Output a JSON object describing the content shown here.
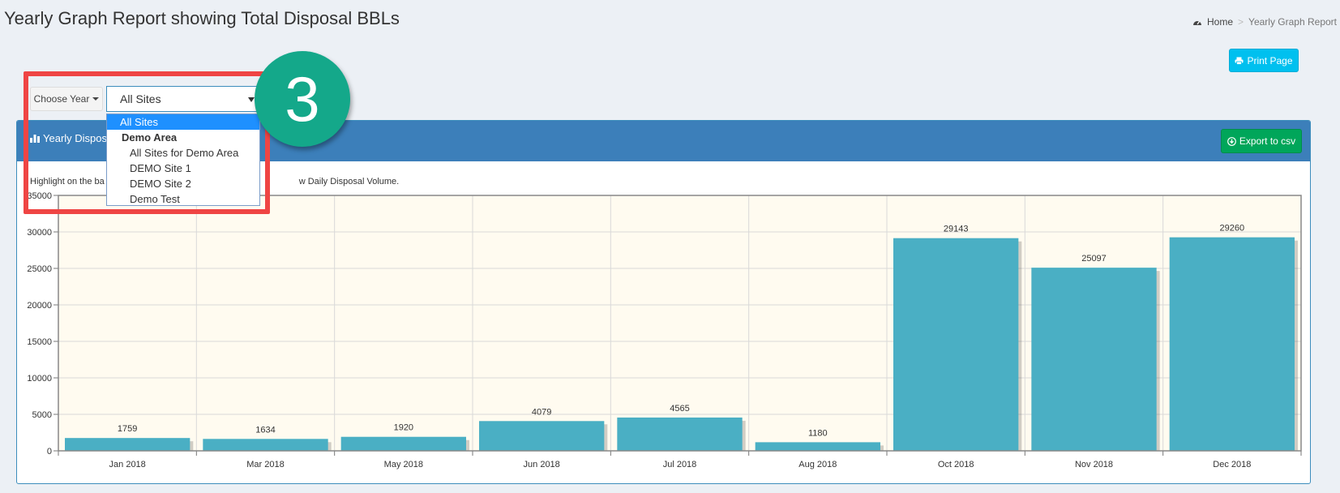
{
  "header": {
    "title": "Yearly Graph Report showing Total Disposal BBLs",
    "breadcrumb": {
      "home": "Home",
      "current": "Yearly Graph Report"
    }
  },
  "toolbar": {
    "print_label": "Print Page",
    "choose_year_label": "Choose Year",
    "site_select_value": "All Sites"
  },
  "site_dropdown": {
    "options": [
      {
        "label": "All Sites",
        "type": "selected"
      },
      {
        "label": "Demo Area",
        "type": "group"
      },
      {
        "label": "All Sites for Demo Area",
        "type": "child"
      },
      {
        "label": "DEMO Site 1",
        "type": "child"
      },
      {
        "label": "DEMO Site 2",
        "type": "child"
      },
      {
        "label": "Demo Test",
        "type": "child"
      }
    ]
  },
  "callout": {
    "number": "3",
    "color": "#14a88a",
    "box_color": "#ef4544"
  },
  "panel": {
    "title_visible": "Yearly Dispos",
    "export_label": "Export to csv",
    "hint_left": "Highlight on the ba",
    "hint_right": "w Daily Disposal Volume."
  },
  "chart_data": {
    "type": "bar",
    "categories": [
      "Jan 2018",
      "Mar 2018",
      "May 2018",
      "Jun 2018",
      "Jul 2018",
      "Aug 2018",
      "Oct 2018",
      "Nov 2018",
      "Dec 2018"
    ],
    "values": [
      1759,
      1634,
      1920,
      4079,
      4565,
      1180,
      29143,
      25097,
      29260
    ],
    "ylim": [
      0,
      35000
    ],
    "yticks": [
      0,
      5000,
      10000,
      15000,
      20000,
      25000,
      30000,
      35000
    ],
    "bar_color": "#4aafc4",
    "plot_bg": "#fffbf0",
    "grid": true
  },
  "colors": {
    "accent": "#3c8dbc",
    "print_button": "#00c0ef",
    "export_button": "#00a65a"
  }
}
